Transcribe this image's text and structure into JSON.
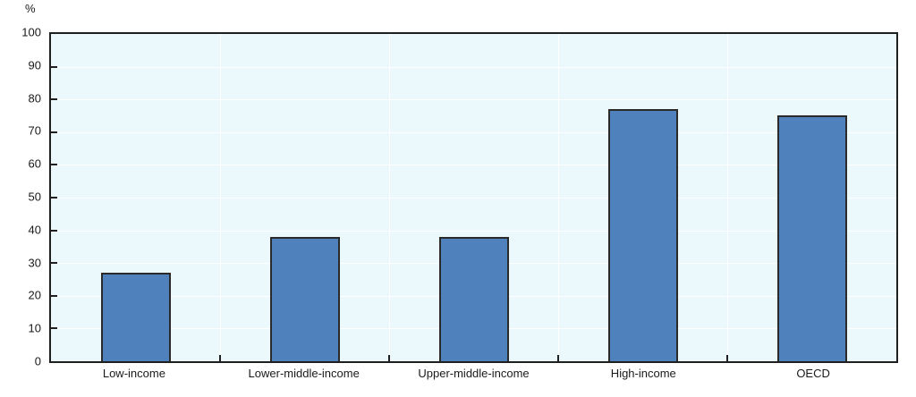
{
  "chart_data": {
    "type": "bar",
    "title": "",
    "categories": [
      "Low-income",
      "Lower-middle-income",
      "Upper-middle-income",
      "High-income",
      "OECD"
    ],
    "values": [
      27,
      38,
      38,
      77,
      75
    ],
    "xlabel": "",
    "ylabel": "%",
    "ylim": [
      0,
      100
    ],
    "ytick_step": 10,
    "y_tick_labels": [
      "0",
      "10",
      "20",
      "30",
      "40",
      "50",
      "60",
      "70",
      "80",
      "90",
      "100"
    ],
    "grid": true,
    "legend_position": "none",
    "colors": {
      "bar_fill": "#4f81bd",
      "bar_border": "#2a2a2a",
      "plot_background": "#ecf9fc",
      "gridline": "#ffffff",
      "axis_border": "#1f1f1f",
      "text": "#1a1a1a"
    }
  }
}
